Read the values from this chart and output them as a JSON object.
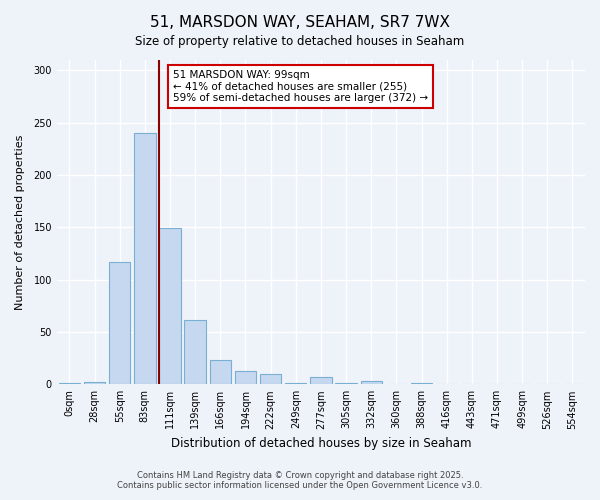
{
  "title": "51, MARSDON WAY, SEAHAM, SR7 7WX",
  "subtitle": "Size of property relative to detached houses in Seaham",
  "xlabel": "Distribution of detached houses by size in Seaham",
  "ylabel": "Number of detached properties",
  "bar_color": "#c5d8f0",
  "bar_edge_color": "#7aafd4",
  "background_color": "#eef2f9",
  "grid_color": "#ffffff",
  "categories": [
    "0sqm",
    "28sqm",
    "55sqm",
    "83sqm",
    "111sqm",
    "139sqm",
    "166sqm",
    "194sqm",
    "222sqm",
    "249sqm",
    "277sqm",
    "305sqm",
    "332sqm",
    "360sqm",
    "388sqm",
    "416sqm",
    "443sqm",
    "471sqm",
    "499sqm",
    "526sqm",
    "554sqm"
  ],
  "values": [
    1,
    2,
    117,
    240,
    149,
    61,
    23,
    13,
    10,
    1,
    7,
    1,
    3,
    0,
    1,
    0,
    0,
    0,
    0,
    0,
    0
  ],
  "ylim": [
    0,
    310
  ],
  "yticks": [
    0,
    50,
    100,
    150,
    200,
    250,
    300
  ],
  "property_line_color": "#8b0000",
  "annotation_text": "51 MARSDON WAY: 99sqm\n← 41% of detached houses are smaller (255)\n59% of semi-detached houses are larger (372) →",
  "annotation_box_color": "#ffffff",
  "annotation_box_edge": "#cc0000",
  "footer_line1": "Contains HM Land Registry data © Crown copyright and database right 2025.",
  "footer_line2": "Contains public sector information licensed under the Open Government Licence v3.0."
}
